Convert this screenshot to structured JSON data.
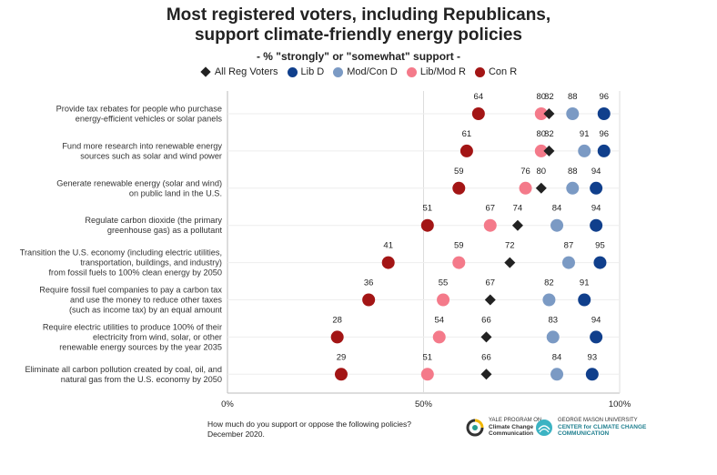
{
  "title_line1": "Most registered voters, including Republicans,",
  "title_line2": "support climate-friendly energy policies",
  "subtitle": "- % \"strongly\" or \"somewhat\" support -",
  "legend": [
    {
      "name": "All Reg Voters",
      "shape": "diamond",
      "color": "#222222"
    },
    {
      "name": "Lib D",
      "shape": "circle",
      "color": "#103f8c"
    },
    {
      "name": "Mod/Con D",
      "shape": "circle",
      "color": "#7b9ac4"
    },
    {
      "name": "Lib/Mod R",
      "shape": "circle",
      "color": "#f47a8a"
    },
    {
      "name": "Con R",
      "shape": "circle",
      "color": "#a31515"
    }
  ],
  "footnote_line1": "How much do you support or oppose the following policies?",
  "footnote_line2": "December 2020.",
  "logo_left": {
    "line1": "YALE PROGRAM ON",
    "line2": "Climate Change",
    "line3": "Communication"
  },
  "logo_right": {
    "line1": "GEORGE MASON UNIVERSITY",
    "line2": "CENTER for CLIMATE CHANGE",
    "line3": "COMMUNICATION"
  },
  "chart_data": {
    "type": "scatter",
    "xlim": [
      0,
      100
    ],
    "x_ticks": [
      "0%",
      "50%",
      "100%"
    ],
    "grid": true,
    "legend_position": "top",
    "categories": [
      [
        "Provide tax rebates for people who purchase",
        "energy-efficient vehicles or solar panels"
      ],
      [
        "Fund more research into renewable energy",
        "sources such as solar and wind power"
      ],
      [
        "Generate renewable energy (solar and wind)",
        "on public land in the U.S."
      ],
      [
        "Regulate carbon dioxide (the primary",
        "greenhouse gas) as a pollutant"
      ],
      [
        "Transition the U.S. economy (including electric utilities,",
        "transportation, buildings, and industry)",
        "from fossil fuels to 100% clean energy by 2050"
      ],
      [
        "Require fossil fuel companies to pay a carbon tax",
        "and use the money to reduce other taxes",
        "(such as income tax) by an equal amount"
      ],
      [
        "Require electric utilities to produce 100% of their",
        "electricity from wind, solar, or other",
        "renewable energy sources by the year 2035"
      ],
      [
        "Eliminate all carbon pollution created by coal, oil, and",
        "natural gas from the U.S. economy by 2050"
      ]
    ],
    "series": [
      {
        "name": "Con R",
        "values": [
          64,
          61,
          59,
          51,
          41,
          36,
          28,
          29
        ]
      },
      {
        "name": "Lib/Mod R",
        "values": [
          80,
          80,
          76,
          67,
          59,
          55,
          54,
          51
        ]
      },
      {
        "name": "Mod/Con D",
        "values": [
          88,
          91,
          88,
          84,
          87,
          82,
          83,
          84
        ]
      },
      {
        "name": "Lib D",
        "values": [
          96,
          96,
          94,
          94,
          95,
          91,
          94,
          93
        ]
      },
      {
        "name": "All Reg Voters",
        "values": [
          82,
          82,
          80,
          74,
          72,
          67,
          66,
          66
        ]
      }
    ]
  }
}
